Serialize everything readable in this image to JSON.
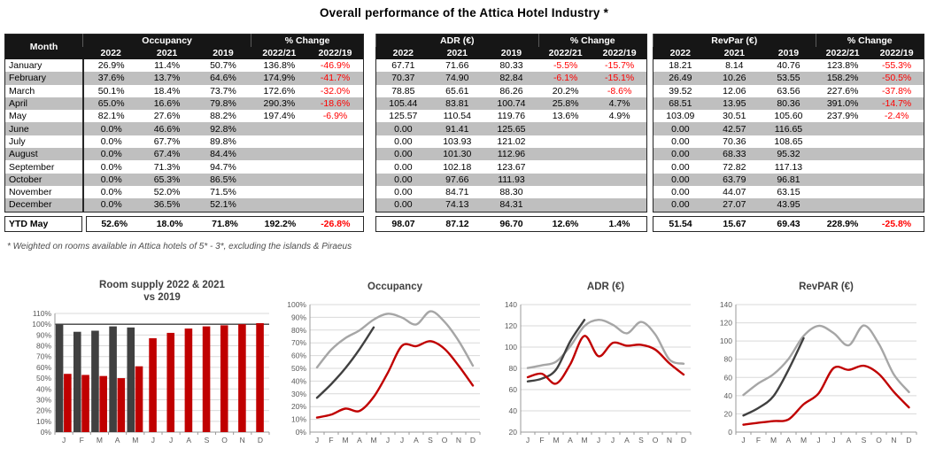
{
  "title": "Overall performance of the Attica Hotel Industry *",
  "footnote": "* Weighted on rooms available in Attica hotels of 5* - 3*, excluding the islands & Piraeus",
  "colors": {
    "header_bg": "#161616",
    "stripe": "#bfbfbf",
    "negative": "#ff0000",
    "dark": "#404040",
    "red": "#c00000",
    "gray": "#a6a6a6",
    "grid": "#d9d9d9",
    "axis": "#999999",
    "tick_text": "#595959",
    "title_text": "#404040"
  },
  "tables": [
    {
      "has_month_column": true,
      "month_label": "Month",
      "metric_label": "Occupancy",
      "pct_change_label": "% Change",
      "year_headers": [
        "2022",
        "2021",
        "2019",
        "2022/21",
        "2022/19"
      ],
      "rows": [
        [
          "January",
          "26.9%",
          "11.4%",
          "50.7%",
          "136.8%",
          "-46.9%"
        ],
        [
          "February",
          "37.6%",
          "13.7%",
          "64.6%",
          "174.9%",
          "-41.7%"
        ],
        [
          "March",
          "50.1%",
          "18.4%",
          "73.7%",
          "172.6%",
          "-32.0%"
        ],
        [
          "April",
          "65.0%",
          "16.6%",
          "79.8%",
          "290.3%",
          "-18.6%"
        ],
        [
          "May",
          "82.1%",
          "27.6%",
          "88.2%",
          "197.4%",
          "-6.9%"
        ],
        [
          "June",
          "0.0%",
          "46.6%",
          "92.8%",
          "",
          ""
        ],
        [
          "July",
          "0.0%",
          "67.7%",
          "89.8%",
          "",
          ""
        ],
        [
          "August",
          "0.0%",
          "67.4%",
          "84.4%",
          "",
          ""
        ],
        [
          "September",
          "0.0%",
          "71.3%",
          "94.7%",
          "",
          ""
        ],
        [
          "October",
          "0.0%",
          "65.3%",
          "86.5%",
          "",
          ""
        ],
        [
          "November",
          "0.0%",
          "52.0%",
          "71.5%",
          "",
          ""
        ],
        [
          "December",
          "0.0%",
          "36.5%",
          "52.1%",
          "",
          ""
        ]
      ],
      "ytd": {
        "label": "YTD May",
        "values": [
          "52.6%",
          "18.0%",
          "71.8%",
          "192.2%",
          "-26.8%"
        ]
      }
    },
    {
      "has_month_column": false,
      "metric_label": "ADR (€)",
      "pct_change_label": "% Change",
      "year_headers": [
        "2022",
        "2021",
        "2019",
        "2022/21",
        "2022/19"
      ],
      "rows": [
        [
          "67.71",
          "71.66",
          "80.33",
          "-5.5%",
          "-15.7%"
        ],
        [
          "70.37",
          "74.90",
          "82.84",
          "-6.1%",
          "-15.1%"
        ],
        [
          "78.85",
          "65.61",
          "86.26",
          "20.2%",
          "-8.6%"
        ],
        [
          "105.44",
          "83.81",
          "100.74",
          "25.8%",
          "4.7%"
        ],
        [
          "125.57",
          "110.54",
          "119.76",
          "13.6%",
          "4.9%"
        ],
        [
          "0.00",
          "91.41",
          "125.65",
          "",
          ""
        ],
        [
          "0.00",
          "103.93",
          "121.02",
          "",
          ""
        ],
        [
          "0.00",
          "101.30",
          "112.96",
          "",
          ""
        ],
        [
          "0.00",
          "102.18",
          "123.67",
          "",
          ""
        ],
        [
          "0.00",
          "97.66",
          "111.93",
          "",
          ""
        ],
        [
          "0.00",
          "84.71",
          "88.30",
          "",
          ""
        ],
        [
          "0.00",
          "74.13",
          "84.31",
          "",
          ""
        ]
      ],
      "ytd": {
        "values": [
          "98.07",
          "87.12",
          "96.70",
          "12.6%",
          "1.4%"
        ]
      }
    },
    {
      "has_month_column": false,
      "metric_label": "RevPar (€)",
      "pct_change_label": "% Change",
      "year_headers": [
        "2022",
        "2021",
        "2019",
        "2022/21",
        "2022/19"
      ],
      "rows": [
        [
          "18.21",
          "8.14",
          "40.76",
          "123.8%",
          "-55.3%"
        ],
        [
          "26.49",
          "10.26",
          "53.55",
          "158.2%",
          "-50.5%"
        ],
        [
          "39.52",
          "12.06",
          "63.56",
          "227.6%",
          "-37.8%"
        ],
        [
          "68.51",
          "13.95",
          "80.36",
          "391.0%",
          "-14.7%"
        ],
        [
          "103.09",
          "30.51",
          "105.60",
          "237.9%",
          "-2.4%"
        ],
        [
          "0.00",
          "42.57",
          "116.65",
          "",
          ""
        ],
        [
          "0.00",
          "70.36",
          "108.65",
          "",
          ""
        ],
        [
          "0.00",
          "68.33",
          "95.32",
          "",
          ""
        ],
        [
          "0.00",
          "72.82",
          "117.13",
          "",
          ""
        ],
        [
          "0.00",
          "63.79",
          "96.81",
          "",
          ""
        ],
        [
          "0.00",
          "44.07",
          "63.15",
          "",
          ""
        ],
        [
          "0.00",
          "27.07",
          "43.95",
          "",
          ""
        ]
      ],
      "ytd": {
        "values": [
          "51.54",
          "15.67",
          "69.43",
          "228.9%",
          "-25.8%"
        ]
      }
    }
  ],
  "chart_data": [
    {
      "type": "bar",
      "title_lines": [
        "Room supply 2022 & 2021",
        "vs 2019"
      ],
      "categories": [
        "J",
        "F",
        "M",
        "A",
        "M",
        "J",
        "J",
        "A",
        "S",
        "O",
        "N",
        "D"
      ],
      "series": [
        {
          "name": "2022",
          "color_key": "dark",
          "values": [
            100,
            93,
            94,
            98,
            97,
            null,
            null,
            null,
            null,
            null,
            null,
            null
          ]
        },
        {
          "name": "2021",
          "color_key": "red",
          "values": [
            54,
            53,
            52,
            50,
            61,
            87,
            92,
            96,
            98,
            99,
            100,
            101
          ]
        }
      ],
      "ylim": [
        0,
        110
      ],
      "ytick_step": 10,
      "yformat": "percent",
      "reference_line": 100,
      "grid": true,
      "legend": "none"
    },
    {
      "type": "line",
      "title": "Occupancy",
      "categories": [
        "J",
        "F",
        "M",
        "A",
        "M",
        "J",
        "J",
        "A",
        "S",
        "O",
        "N",
        "D"
      ],
      "series": [
        {
          "name": "2019",
          "color_key": "gray",
          "values": [
            50.7,
            64.6,
            73.7,
            79.8,
            88.2,
            92.8,
            89.8,
            84.4,
            94.7,
            86.5,
            71.5,
            52.1
          ]
        },
        {
          "name": "2022",
          "color_key": "dark",
          "values": [
            26.9,
            37.6,
            50.1,
            65.0,
            82.1,
            null,
            null,
            null,
            null,
            null,
            null,
            null
          ]
        },
        {
          "name": "2021",
          "color_key": "red",
          "values": [
            11.4,
            13.7,
            18.4,
            16.6,
            27.6,
            46.6,
            67.7,
            67.4,
            71.3,
            65.3,
            52.0,
            36.5
          ]
        }
      ],
      "ylim": [
        0,
        100
      ],
      "ytick_step": 10,
      "yformat": "percent",
      "grid": true,
      "legend": "none"
    },
    {
      "type": "line",
      "title": "ADR (€)",
      "categories": [
        "J",
        "F",
        "M",
        "A",
        "M",
        "J",
        "J",
        "A",
        "S",
        "O",
        "N",
        "D"
      ],
      "series": [
        {
          "name": "2019",
          "color_key": "gray",
          "values": [
            80.33,
            82.84,
            86.26,
            100.74,
            119.76,
            125.65,
            121.02,
            112.96,
            123.67,
            111.93,
            88.3,
            84.31
          ]
        },
        {
          "name": "2022",
          "color_key": "dark",
          "values": [
            67.71,
            70.37,
            78.85,
            105.44,
            125.57,
            null,
            null,
            null,
            null,
            null,
            null,
            null
          ]
        },
        {
          "name": "2021",
          "color_key": "red",
          "values": [
            71.66,
            74.9,
            65.61,
            83.81,
            110.54,
            91.41,
            103.93,
            101.3,
            102.18,
            97.66,
            84.71,
            74.13
          ]
        }
      ],
      "ylim": [
        20,
        140
      ],
      "ytick_step": 20,
      "yformat": "number",
      "grid": true,
      "legend": "none"
    },
    {
      "type": "line",
      "title": "RevPAR (€)",
      "categories": [
        "J",
        "F",
        "M",
        "A",
        "M",
        "J",
        "J",
        "A",
        "S",
        "O",
        "N",
        "D"
      ],
      "series": [
        {
          "name": "2019",
          "color_key": "gray",
          "values": [
            40.76,
            53.55,
            63.56,
            80.36,
            105.6,
            116.65,
            108.65,
            95.32,
            117.13,
            96.81,
            63.15,
            43.95
          ]
        },
        {
          "name": "2022",
          "color_key": "dark",
          "values": [
            18.21,
            26.49,
            39.52,
            68.51,
            103.09,
            null,
            null,
            null,
            null,
            null,
            null,
            null
          ]
        },
        {
          "name": "2021",
          "color_key": "red",
          "values": [
            8.14,
            10.26,
            12.06,
            13.95,
            30.51,
            42.57,
            70.36,
            68.33,
            72.82,
            63.79,
            44.07,
            27.07
          ]
        }
      ],
      "ylim": [
        0,
        140
      ],
      "ytick_step": 20,
      "yformat": "number",
      "grid": true,
      "legend": "none"
    }
  ]
}
